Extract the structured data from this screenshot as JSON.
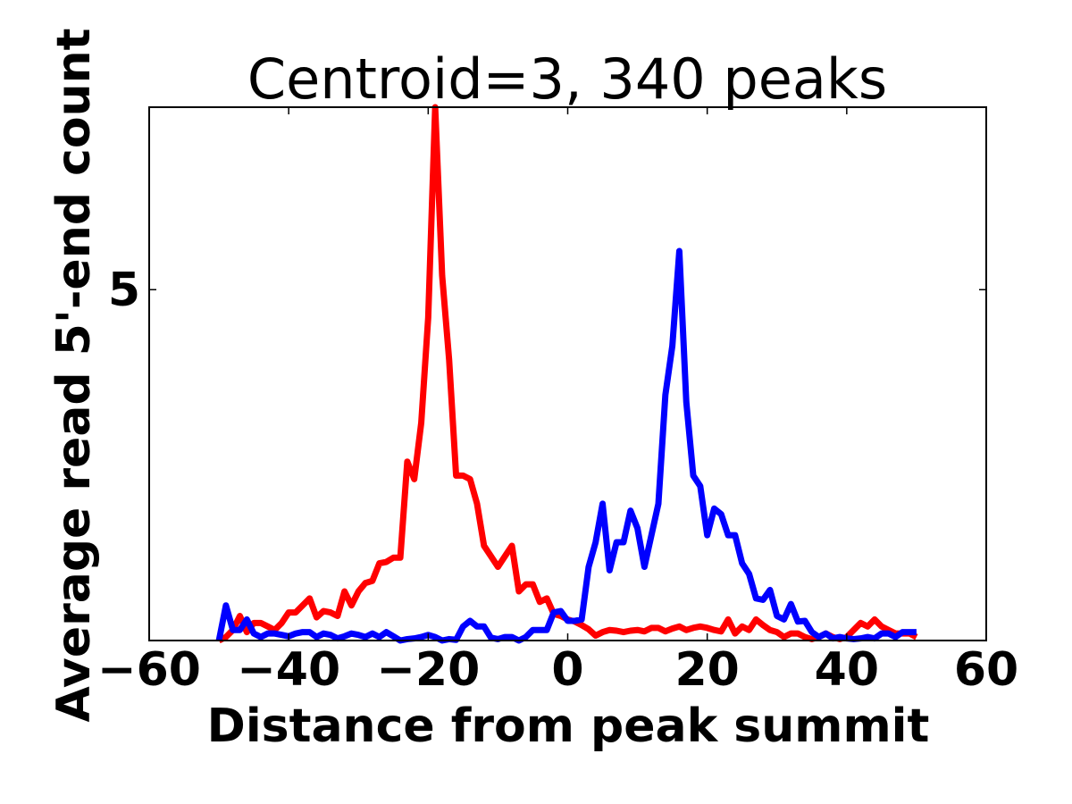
{
  "chart_data": {
    "type": "line",
    "title": "Centroid=3, 340 peaks",
    "xlabel": "Distance from peak summit",
    "ylabel": "Average read 5'-end count",
    "xlim": [
      -60,
      60
    ],
    "ylim": [
      0,
      7.6
    ],
    "x_ticks": [
      -60,
      -40,
      -20,
      0,
      20,
      40,
      60
    ],
    "x_tick_labels": [
      "−60",
      "−40",
      "−20",
      "0",
      "20",
      "40",
      "60"
    ],
    "y_ticks": [
      5
    ],
    "y_tick_labels": [
      "5"
    ],
    "grid": false,
    "legend": "none",
    "x": [
      -50,
      -49,
      -48,
      -47,
      -46,
      -45,
      -44,
      -43,
      -42,
      -41,
      -40,
      -39,
      -38,
      -37,
      -36,
      -35,
      -34,
      -33,
      -32,
      -31,
      -30,
      -29,
      -28,
      -27,
      -26,
      -25,
      -24,
      -23,
      -22,
      -21,
      -20,
      -19,
      -18,
      -17,
      -16,
      -15,
      -14,
      -13,
      -12,
      -11,
      -10,
      -9,
      -8,
      -7,
      -6,
      -5,
      -4,
      -3,
      -2,
      -1,
      0,
      1,
      2,
      3,
      4,
      5,
      6,
      7,
      8,
      9,
      10,
      11,
      12,
      13,
      14,
      15,
      16,
      17,
      18,
      19,
      20,
      21,
      22,
      23,
      24,
      25,
      26,
      27,
      28,
      29,
      30,
      31,
      32,
      33,
      34,
      35,
      36,
      37,
      38,
      39,
      40,
      41,
      42,
      43,
      44,
      45,
      46,
      47,
      48,
      49,
      50
    ],
    "series": [
      {
        "color": "#ff0000",
        "values": [
          0.0,
          0.05,
          0.15,
          0.35,
          0.12,
          0.25,
          0.25,
          0.2,
          0.15,
          0.25,
          0.4,
          0.4,
          0.5,
          0.6,
          0.33,
          0.42,
          0.4,
          0.35,
          0.7,
          0.5,
          0.7,
          0.82,
          0.85,
          1.1,
          1.12,
          1.18,
          1.18,
          2.55,
          2.3,
          3.1,
          4.6,
          7.6,
          5.2,
          4.0,
          2.35,
          2.35,
          2.3,
          1.95,
          1.35,
          1.2,
          1.05,
          1.2,
          1.35,
          0.7,
          0.8,
          0.8,
          0.55,
          0.6,
          0.38,
          0.35,
          0.3,
          0.27,
          0.22,
          0.16,
          0.07,
          0.12,
          0.15,
          0.14,
          0.12,
          0.14,
          0.15,
          0.13,
          0.18,
          0.18,
          0.13,
          0.17,
          0.2,
          0.15,
          0.18,
          0.2,
          0.18,
          0.15,
          0.13,
          0.3,
          0.1,
          0.2,
          0.15,
          0.3,
          0.22,
          0.15,
          0.12,
          0.05,
          0.1,
          0.1,
          0.05,
          0.02,
          0.05,
          0.1,
          0.05,
          0.02,
          0.05,
          0.15,
          0.25,
          0.2,
          0.3,
          0.2,
          0.15,
          0.1,
          0.1,
          0.1,
          0.05
        ]
      },
      {
        "color": "#0000ff",
        "values": [
          0.0,
          0.5,
          0.15,
          0.15,
          0.3,
          0.1,
          0.05,
          0.1,
          0.1,
          0.08,
          0.06,
          0.1,
          0.12,
          0.12,
          0.05,
          0.1,
          0.08,
          0.03,
          0.06,
          0.1,
          0.08,
          0.05,
          0.1,
          0.05,
          0.12,
          0.06,
          0.0,
          0.02,
          0.03,
          0.05,
          0.08,
          0.05,
          0.0,
          0.02,
          0.01,
          0.2,
          0.28,
          0.2,
          0.2,
          0.04,
          0.02,
          0.05,
          0.05,
          0.0,
          0.05,
          0.15,
          0.15,
          0.15,
          0.4,
          0.42,
          0.28,
          0.28,
          0.3,
          1.05,
          1.4,
          1.95,
          1.0,
          1.4,
          1.4,
          1.85,
          1.6,
          1.05,
          1.5,
          1.95,
          3.5,
          4.2,
          5.55,
          3.4,
          2.35,
          2.2,
          1.5,
          1.88,
          1.8,
          1.5,
          1.5,
          1.1,
          0.95,
          0.6,
          0.58,
          0.72,
          0.35,
          0.3,
          0.52,
          0.27,
          0.28,
          0.12,
          0.05,
          0.1,
          0.03,
          0.05,
          0.03,
          0.02,
          0.03,
          0.05,
          0.03,
          0.1,
          0.1,
          0.05,
          0.12,
          0.12,
          0.12
        ]
      }
    ]
  }
}
